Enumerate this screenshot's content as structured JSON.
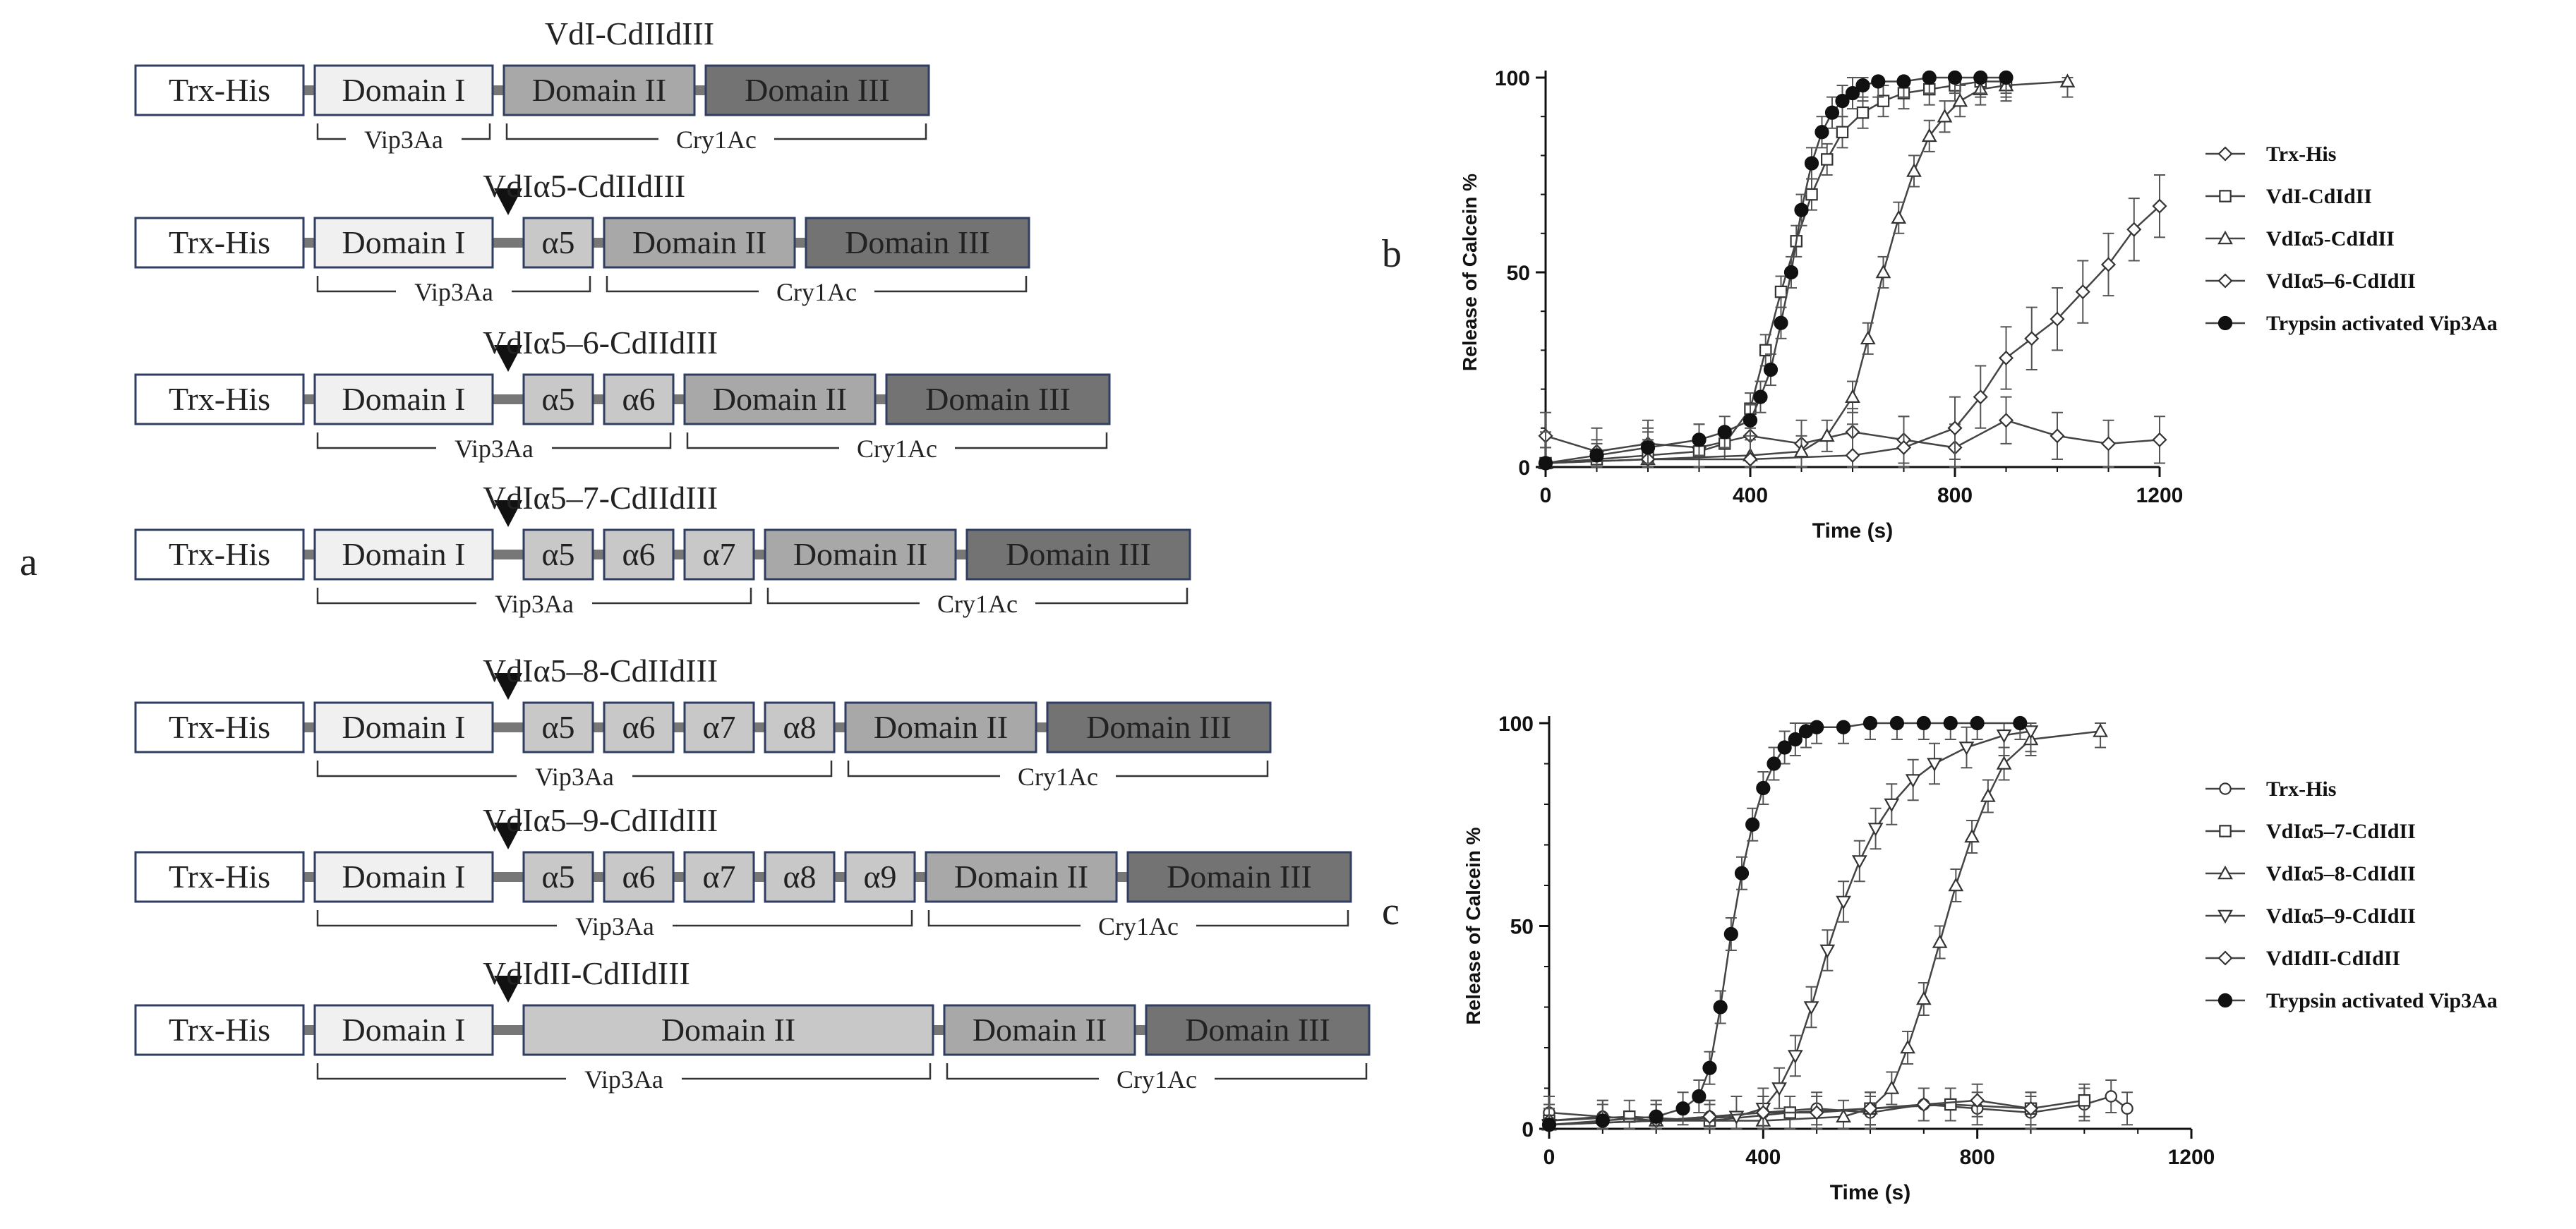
{
  "figure": {
    "panel_labels": {
      "a": "a",
      "b": "b",
      "c": "c"
    },
    "colors": {
      "trx_fill": "#ffffff",
      "domain1_fill": "#f0f0f0",
      "helix_fill": "#c8c8c8",
      "domain2_fill": "#a8a8a8",
      "domain3_fill": "#737373",
      "box_stroke": "#2f3e62",
      "linker": "#777777",
      "ink": "#222222"
    }
  },
  "constructs": [
    {
      "title": "VdI-CdIIdIII",
      "arrow": false,
      "boxes": [
        {
          "label": "Trx-His",
          "kind": "trx"
        },
        {
          "label": "Domain I",
          "kind": "d1"
        },
        {
          "label": "Domain II",
          "kind": "d2"
        },
        {
          "label": "Domain III",
          "kind": "d3"
        }
      ],
      "brackets": [
        {
          "label": "Vip3Aa",
          "from": 1,
          "to": 1
        },
        {
          "label": "Cry1Ac",
          "from": 2,
          "to": 3
        }
      ]
    },
    {
      "title": "VdIα5-CdIIdIII",
      "arrow": true,
      "boxes": [
        {
          "label": "Trx-His",
          "kind": "trx"
        },
        {
          "label": "Domain I",
          "kind": "d1"
        },
        {
          "label": "α5",
          "kind": "helix"
        },
        {
          "label": "Domain II",
          "kind": "d2"
        },
        {
          "label": "Domain III",
          "kind": "d3"
        }
      ],
      "brackets": [
        {
          "label": "Vip3Aa",
          "from": 1,
          "to": 2
        },
        {
          "label": "Cry1Ac",
          "from": 3,
          "to": 4
        }
      ]
    },
    {
      "title": "VdIα5–6-CdIIdIII",
      "arrow": true,
      "boxes": [
        {
          "label": "Trx-His",
          "kind": "trx"
        },
        {
          "label": "Domain I",
          "kind": "d1"
        },
        {
          "label": "α5",
          "kind": "helix"
        },
        {
          "label": "α6",
          "kind": "helix"
        },
        {
          "label": "Domain II",
          "kind": "d2"
        },
        {
          "label": "Domain III",
          "kind": "d3"
        }
      ],
      "brackets": [
        {
          "label": "Vip3Aa",
          "from": 1,
          "to": 3
        },
        {
          "label": "Cry1Ac",
          "from": 4,
          "to": 5
        }
      ]
    },
    {
      "title": "VdIα5–7-CdIIdIII",
      "arrow": true,
      "boxes": [
        {
          "label": "Trx-His",
          "kind": "trx"
        },
        {
          "label": "Domain I",
          "kind": "d1"
        },
        {
          "label": "α5",
          "kind": "helix"
        },
        {
          "label": "α6",
          "kind": "helix"
        },
        {
          "label": "α7",
          "kind": "helix"
        },
        {
          "label": "Domain II",
          "kind": "d2"
        },
        {
          "label": "Domain III",
          "kind": "d3"
        }
      ],
      "brackets": [
        {
          "label": "Vip3Aa",
          "from": 1,
          "to": 4
        },
        {
          "label": "Cry1Ac",
          "from": 5,
          "to": 6
        }
      ]
    },
    {
      "title": "VdIα5–8-CdIIdIII",
      "arrow": true,
      "boxes": [
        {
          "label": "Trx-His",
          "kind": "trx"
        },
        {
          "label": "Domain I",
          "kind": "d1"
        },
        {
          "label": "α5",
          "kind": "helix"
        },
        {
          "label": "α6",
          "kind": "helix"
        },
        {
          "label": "α7",
          "kind": "helix"
        },
        {
          "label": "α8",
          "kind": "helix"
        },
        {
          "label": "Domain II",
          "kind": "d2"
        },
        {
          "label": "Domain III",
          "kind": "d3"
        }
      ],
      "brackets": [
        {
          "label": "Vip3Aa",
          "from": 1,
          "to": 5
        },
        {
          "label": "Cry1Ac",
          "from": 6,
          "to": 7
        }
      ]
    },
    {
      "title": "VdIα5–9-CdIIdIII",
      "arrow": true,
      "boxes": [
        {
          "label": "Trx-His",
          "kind": "trx"
        },
        {
          "label": "Domain I",
          "kind": "d1"
        },
        {
          "label": "α5",
          "kind": "helix"
        },
        {
          "label": "α6",
          "kind": "helix"
        },
        {
          "label": "α7",
          "kind": "helix"
        },
        {
          "label": "α8",
          "kind": "helix"
        },
        {
          "label": "α9",
          "kind": "helix"
        },
        {
          "label": "Domain II",
          "kind": "d2"
        },
        {
          "label": "Domain III",
          "kind": "d3"
        }
      ],
      "brackets": [
        {
          "label": "Vip3Aa",
          "from": 1,
          "to": 6
        },
        {
          "label": "Cry1Ac",
          "from": 7,
          "to": 8
        }
      ]
    },
    {
      "title": "VdIdII-CdIIdIII",
      "arrow": true,
      "boxes": [
        {
          "label": "Trx-His",
          "kind": "trx"
        },
        {
          "label": "Domain I",
          "kind": "d1"
        },
        {
          "label": "Domain II",
          "kind": "vip_d2"
        },
        {
          "label": "Domain II",
          "kind": "d2"
        },
        {
          "label": "Domain III",
          "kind": "d3"
        }
      ],
      "brackets": [
        {
          "label": "Vip3Aa",
          "from": 1,
          "to": 2
        },
        {
          "label": "Cry1Ac",
          "from": 3,
          "to": 4
        }
      ]
    }
  ],
  "chart_data": [
    {
      "panel": "b",
      "type": "line",
      "xlabel": "Time (s)",
      "ylabel": "Release of Calcein %",
      "xlim": [
        0,
        1200
      ],
      "ylim": [
        0,
        100
      ],
      "xticks": [
        0,
        400,
        800,
        1200
      ],
      "yticks": [
        0,
        50,
        100
      ],
      "legend_position": "right",
      "series": [
        {
          "name": "Trx-His",
          "marker": "diamond",
          "err": 6,
          "x": [
            0,
            100,
            200,
            300,
            400,
            500,
            600,
            700,
            800,
            900,
            1000,
            1100,
            1200
          ],
          "y": [
            8,
            4,
            6,
            5,
            8,
            6,
            9,
            7,
            5,
            12,
            8,
            6,
            7
          ]
        },
        {
          "name": "VdI-CdIdII",
          "marker": "square",
          "err": 4,
          "x": [
            0,
            100,
            200,
            300,
            350,
            400,
            430,
            460,
            490,
            520,
            550,
            580,
            620,
            660,
            700,
            750,
            800,
            850,
            900
          ],
          "y": [
            1,
            2,
            3,
            4,
            6,
            15,
            30,
            45,
            58,
            70,
            79,
            86,
            91,
            94,
            96,
            97,
            98,
            99,
            99
          ]
        },
        {
          "name": "VdIα5-CdIdII",
          "marker": "triangle-up",
          "err": 4,
          "x": [
            0,
            200,
            400,
            500,
            550,
            600,
            630,
            660,
            690,
            720,
            750,
            780,
            810,
            850,
            900,
            1020
          ],
          "y": [
            1,
            2,
            3,
            4,
            8,
            18,
            33,
            50,
            64,
            76,
            85,
            90,
            94,
            97,
            98,
            99
          ]
        },
        {
          "name": "VdIα5–6-CdIdII",
          "marker": "diamond",
          "err": 8,
          "x": [
            0,
            200,
            400,
            600,
            700,
            800,
            850,
            900,
            950,
            1000,
            1050,
            1100,
            1150,
            1200
          ],
          "y": [
            1,
            2,
            2,
            3,
            5,
            10,
            18,
            28,
            33,
            38,
            45,
            52,
            61,
            67
          ]
        },
        {
          "name": "Trypsin activated Vip3Aa",
          "marker": "circle-filled",
          "err": 4,
          "x": [
            0,
            100,
            200,
            300,
            350,
            400,
            420,
            440,
            460,
            480,
            500,
            520,
            540,
            560,
            580,
            600,
            620,
            650,
            700,
            750,
            800,
            850,
            900
          ],
          "y": [
            1,
            3,
            5,
            7,
            9,
            12,
            18,
            25,
            37,
            50,
            66,
            78,
            86,
            91,
            94,
            96,
            98,
            99,
            99,
            100,
            100,
            100,
            100
          ]
        }
      ]
    },
    {
      "panel": "c",
      "type": "line",
      "xlabel": "Time (s)",
      "ylabel": "Release of Calcein %",
      "xlim": [
        0,
        1200
      ],
      "ylim": [
        0,
        100
      ],
      "xticks": [
        0,
        400,
        800,
        1200
      ],
      "yticks": [
        0,
        50,
        100
      ],
      "legend_position": "right",
      "series": [
        {
          "name": "Trx-His",
          "marker": "circle-open",
          "err": 4,
          "x": [
            0,
            100,
            200,
            300,
            400,
            500,
            600,
            700,
            800,
            900,
            1000,
            1050,
            1080
          ],
          "y": [
            4,
            3,
            2,
            3,
            4,
            5,
            4,
            6,
            5,
            4,
            6,
            8,
            5
          ]
        },
        {
          "name": "VdIα5–7-CdIdII",
          "marker": "square",
          "err": 4,
          "x": [
            0,
            150,
            300,
            450,
            600,
            750,
            900,
            1000
          ],
          "y": [
            2,
            3,
            2,
            4,
            5,
            6,
            5,
            7
          ]
        },
        {
          "name": "VdIα5–8-CdIdII",
          "marker": "triangle-up",
          "err": 4,
          "x": [
            0,
            200,
            400,
            550,
            600,
            640,
            670,
            700,
            730,
            760,
            790,
            820,
            850,
            900,
            1030
          ],
          "y": [
            1,
            2,
            2,
            3,
            5,
            10,
            20,
            32,
            46,
            60,
            72,
            82,
            90,
            96,
            98
          ]
        },
        {
          "name": "VdIα5–9-CdIdII",
          "marker": "triangle-down",
          "err": 5,
          "x": [
            0,
            200,
            350,
            400,
            430,
            460,
            490,
            520,
            550,
            580,
            610,
            640,
            680,
            720,
            780,
            850,
            900
          ],
          "y": [
            1,
            2,
            3,
            5,
            10,
            18,
            30,
            44,
            56,
            66,
            74,
            80,
            86,
            90,
            94,
            97,
            98
          ]
        },
        {
          "name": "VdIdII-CdIdII",
          "marker": "diamond",
          "err": 4,
          "x": [
            0,
            100,
            200,
            300,
            400,
            500,
            600,
            700,
            800,
            900
          ],
          "y": [
            2,
            3,
            2,
            3,
            4,
            4,
            5,
            6,
            7,
            5
          ]
        },
        {
          "name": "Trypsin activated Vip3Aa",
          "marker": "circle-filled",
          "err": 4,
          "x": [
            0,
            100,
            200,
            250,
            280,
            300,
            320,
            340,
            360,
            380,
            400,
            420,
            440,
            460,
            480,
            500,
            550,
            600,
            650,
            700,
            750,
            800,
            880
          ],
          "y": [
            1,
            2,
            3,
            5,
            8,
            15,
            30,
            48,
            63,
            75,
            84,
            90,
            94,
            96,
            98,
            99,
            99,
            100,
            100,
            100,
            100,
            100,
            100
          ]
        }
      ]
    }
  ]
}
